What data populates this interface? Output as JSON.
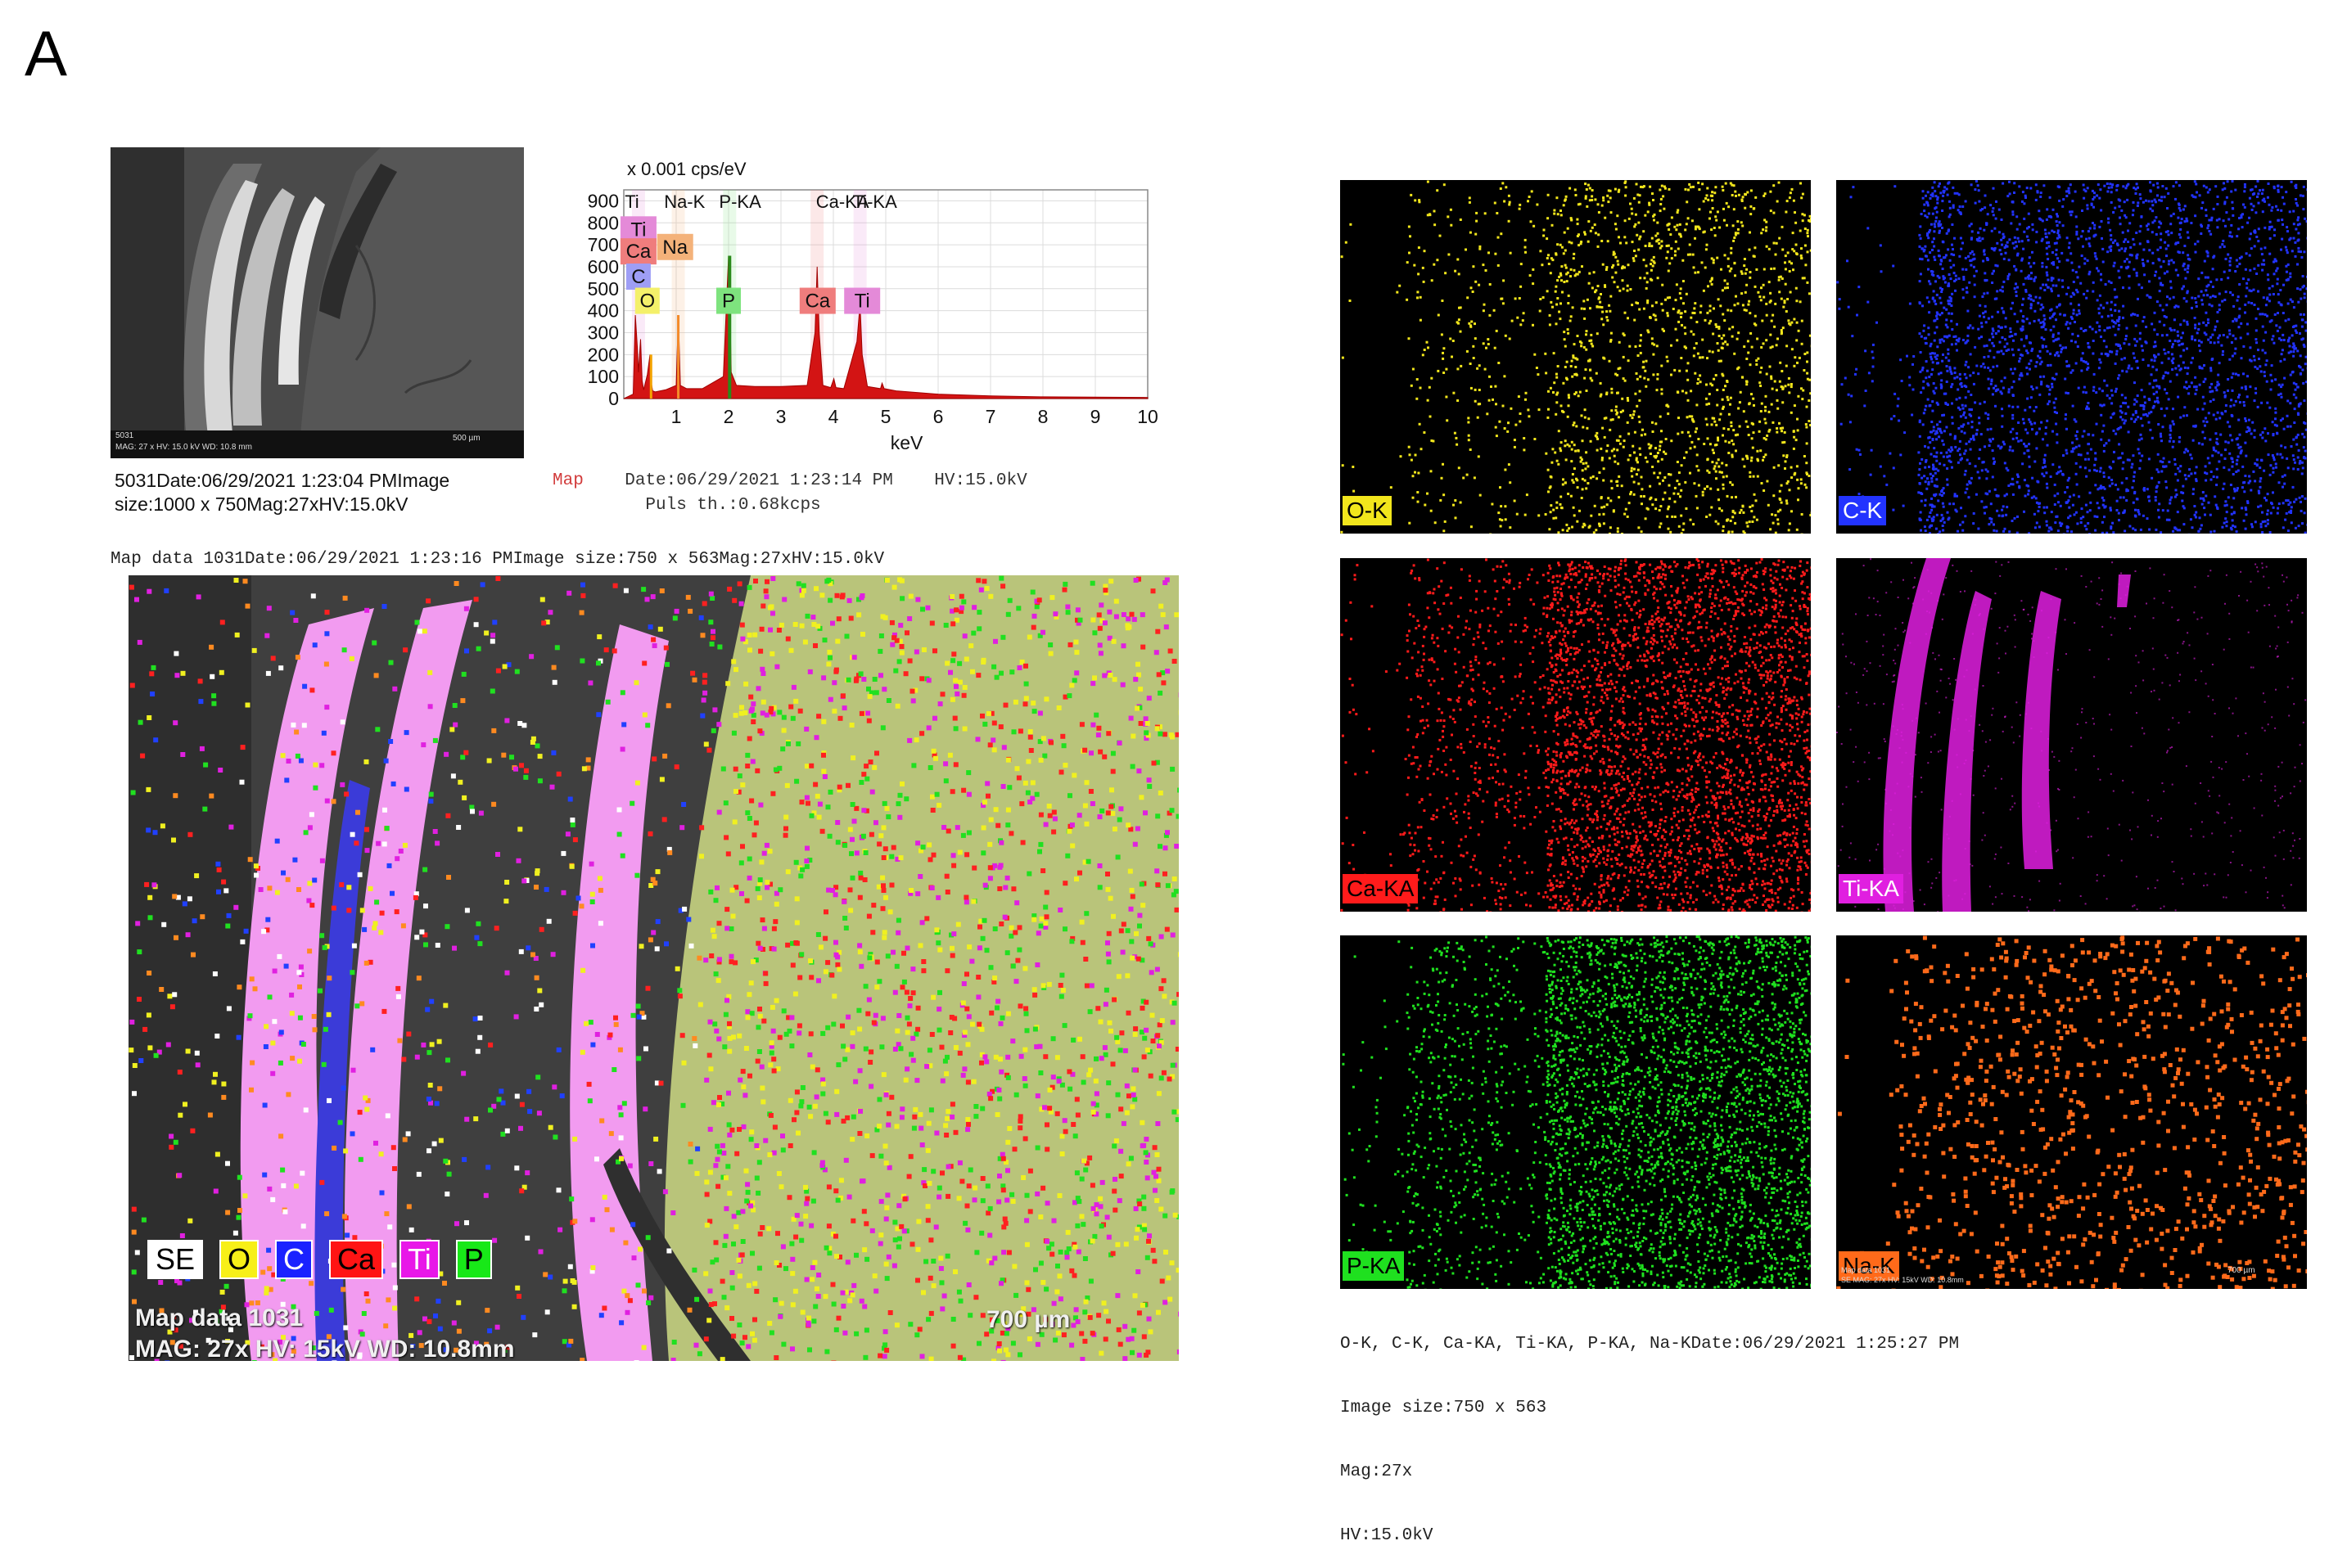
{
  "panel_letter": "A",
  "sem": {
    "caption_line1": "5031Date:06/29/2021 1:23:04 PMImage",
    "caption_line2": "size:1000 x 750Mag:27xHV:15.0kV",
    "inset_id": "5031",
    "inset_meta": "MAG: 27 x  HV: 15.0 kV  WD: 10.8 mm",
    "inset_scale": "500 µm"
  },
  "spectrum": {
    "unit_label": "x 0.001 cps/eV",
    "xlabel": "keV",
    "y_ticks": [
      "0",
      "100",
      "200",
      "300",
      "400",
      "500",
      "600",
      "700",
      "800",
      "900"
    ],
    "x_ticks": [
      "1",
      "2",
      "3",
      "4",
      "5",
      "6",
      "7",
      "8",
      "9",
      "10"
    ],
    "top_labels": [
      "Ti",
      "Na-K",
      "P-KA",
      "Ca-KA",
      "Ti-KA"
    ],
    "peak_tags": [
      {
        "text": "Ti",
        "color": "#e48ad8"
      },
      {
        "text": "Ca",
        "color": "#ef7d7d"
      },
      {
        "text": "C",
        "color": "#9e9ef5"
      },
      {
        "text": "Na",
        "color": "#f4b27a"
      },
      {
        "text": "O",
        "color": "#f4f06a"
      },
      {
        "text": "P",
        "color": "#7ee37e"
      },
      {
        "text": "Ca",
        "color": "#ef7d7d"
      },
      {
        "text": "Ti",
        "color": "#e48ad8"
      }
    ],
    "info_map": "Map",
    "info_line1": "Date:06/29/2021 1:23:14 PM    HV:15.0kV",
    "info_line2": "Puls th.:0.68kcps"
  },
  "chart_data": {
    "type": "line",
    "title": "",
    "xlabel": "keV",
    "ylabel": "x 0.001 cps/eV",
    "xlim": [
      0,
      10
    ],
    "ylim": [
      0,
      950
    ],
    "series": [
      {
        "name": "",
        "x": [
          0.0,
          0.18,
          0.22,
          0.26,
          0.28,
          0.32,
          0.35,
          0.38,
          0.45,
          0.5,
          0.52,
          0.55,
          0.6,
          0.8,
          1.0,
          1.04,
          1.08,
          1.2,
          1.5,
          1.9,
          2.0,
          2.02,
          2.05,
          2.15,
          2.5,
          3.0,
          3.5,
          3.65,
          3.69,
          3.73,
          3.8,
          3.95,
          4.01,
          4.05,
          4.2,
          4.45,
          4.51,
          4.55,
          4.65,
          4.9,
          4.93,
          4.97,
          5.2,
          6.0,
          7.0,
          8.0,
          10.0
        ],
        "y": [
          0,
          20,
          380,
          230,
          120,
          270,
          80,
          40,
          110,
          200,
          80,
          35,
          30,
          40,
          60,
          380,
          60,
          45,
          45,
          100,
          650,
          500,
          120,
          60,
          55,
          55,
          60,
          300,
          600,
          300,
          60,
          50,
          90,
          50,
          45,
          260,
          430,
          200,
          55,
          45,
          70,
          45,
          35,
          20,
          12,
          8,
          5
        ]
      }
    ]
  },
  "map_header": "Map data 1031Date:06/29/2021 1:23:16 PMImage size:750 x 563Mag:27xHV:15.0kV",
  "overlay": {
    "legend": [
      {
        "text": "SE",
        "bg": "#ffffff",
        "fg": "#000000"
      },
      {
        "text": "O",
        "bg": "#f7ef18",
        "fg": "#000000"
      },
      {
        "text": "C",
        "bg": "#1a22ff",
        "fg": "#ffffff"
      },
      {
        "text": "Ca",
        "bg": "#ff1414",
        "fg": "#000000"
      },
      {
        "text": "Ti",
        "bg": "#e817e8",
        "fg": "#ffffff"
      },
      {
        "text": "P",
        "bg": "#18e818",
        "fg": "#000000"
      }
    ],
    "meta_line1": "Map data 1031",
    "meta_line2": "MAG: 27x  HV: 15kV  WD: 10.8mm",
    "scale": "700 µm"
  },
  "element_maps": [
    {
      "label": "O-K",
      "color": "#f2e61c",
      "label_fg": "#000000"
    },
    {
      "label": "C-K",
      "color": "#2233ff",
      "label_fg": "#ffffff"
    },
    {
      "label": "Ca-KA",
      "color": "#ff1b1b",
      "label_fg": "#000000"
    },
    {
      "label": "Ti-KA",
      "color": "#e01fe0",
      "label_fg": "#ffffff"
    },
    {
      "label": "P-KA",
      "color": "#1fe01f",
      "label_fg": "#000000"
    },
    {
      "label": "Na-K",
      "color": "#ff6a1a",
      "label_fg": "#000000"
    }
  ],
  "na_map_inset": {
    "line1": "Map data 1031",
    "line2": "SE  MAG: 27x  HV: 15kV  WD: 10.8mm",
    "scale": "700 µm"
  },
  "map_grid_caption": {
    "line1": "O-K, C-K, Ca-KA, Ti-KA, P-KA, Na-KDate:06/29/2021 1:25:27 PM",
    "line2": "Image size:750 x 563",
    "line3": "Mag:27x",
    "line4": "HV:15.0kV"
  }
}
